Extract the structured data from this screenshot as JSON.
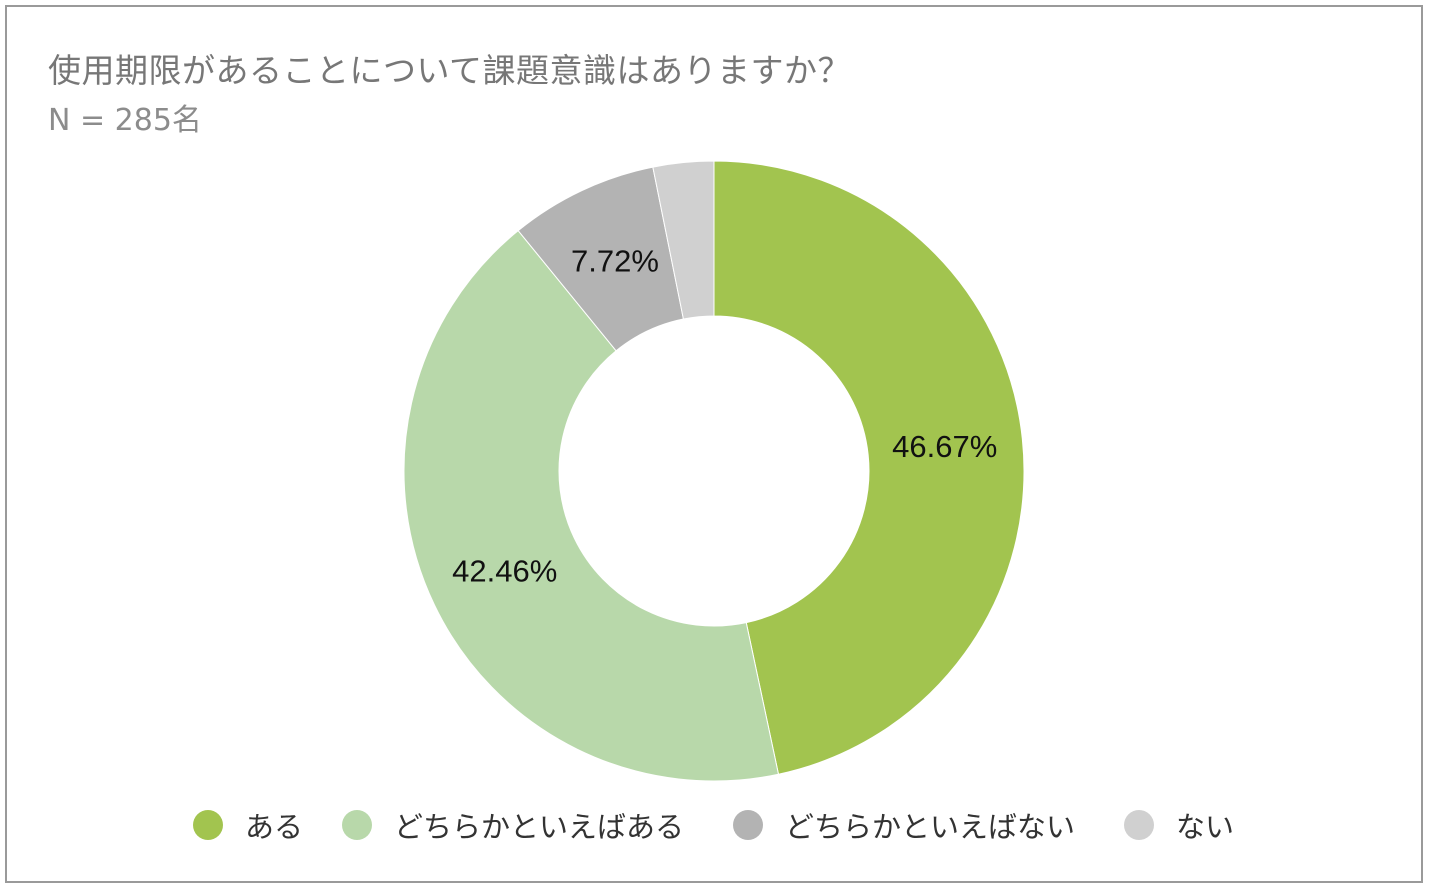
{
  "chart_data": {
    "type": "pie",
    "title": "使用期限があることについて課題意識はありますか？",
    "subtitle": "N = 285名",
    "categories": [
      "ある",
      "どちらかといえばある",
      "どちらかといえばない",
      "ない"
    ],
    "values": [
      46.67,
      42.46,
      7.72,
      3.16
    ],
    "data_labels": [
      "46.67%",
      "42.46%",
      "7.72%",
      ""
    ],
    "colors": [
      "#a2c44f",
      "#b8d8aa",
      "#b3b3b3",
      "#d0d0d0"
    ],
    "donut": true,
    "legend_position": "bottom"
  }
}
